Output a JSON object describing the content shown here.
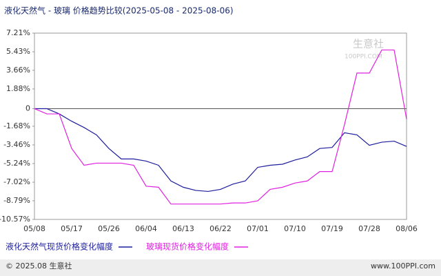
{
  "chart_data": {
    "type": "line",
    "title": "液化天然气 - 玻璃 价格趋势比较(2025-05-08 - 2025-08-06)",
    "watermark": [
      "生意社",
      "100PPI.COM"
    ],
    "footer": [
      "© 2025.08 生意社",
      "www.100PPI.com"
    ],
    "categories": [
      "05/08",
      null,
      null,
      "05/17",
      null,
      null,
      "05/26",
      null,
      null,
      "06/04",
      null,
      null,
      "06/13",
      null,
      null,
      "06/22",
      null,
      null,
      "07/01",
      null,
      null,
      "07/10",
      null,
      null,
      "07/19",
      null,
      null,
      "07/28",
      null,
      null,
      "08/06"
    ],
    "series": [
      {
        "name": "液化天然气现货价格变化幅度",
        "color": "#1c1c9c",
        "values": [
          0,
          0,
          -0.5,
          -1.2,
          -1.8,
          -2.5,
          -3.8,
          -4.8,
          -4.8,
          -5.0,
          -5.4,
          -6.9,
          -7.5,
          -7.8,
          -7.9,
          -7.7,
          -7.2,
          -6.9,
          -5.6,
          -5.4,
          -5.3,
          -4.9,
          -4.6,
          -3.8,
          -3.7,
          -2.3,
          -2.5,
          -3.5,
          -3.2,
          -3.1,
          -3.6
        ]
      },
      {
        "name": "玻璃现货价格变化幅度",
        "color": "#e020e0",
        "values": [
          0,
          -0.5,
          -0.5,
          -3.8,
          -5.4,
          -5.2,
          -5.2,
          -5.2,
          -5.4,
          -7.4,
          -7.5,
          -9.1,
          -9.1,
          -9.1,
          -9.1,
          -9.1,
          -9.0,
          -9.0,
          -8.8,
          -7.7,
          -7.5,
          -7.1,
          -6.9,
          -6.0,
          -6.0,
          -1.5,
          3.4,
          3.4,
          5.6,
          5.6,
          -1.0
        ]
      }
    ],
    "ylim": [
      -10.57,
      7.21
    ],
    "yticks": [
      {
        "value": 7.21,
        "label": "7.21%"
      },
      {
        "value": 5.43,
        "label": "5.43%"
      },
      {
        "value": 3.66,
        "label": "3.66%"
      },
      {
        "value": 1.88,
        "label": "1.88%"
      },
      0,
      {
        "value": -1.68,
        "label": "-1.68%"
      },
      {
        "value": -3.46,
        "label": "-3.46%"
      },
      {
        "value": -5.24,
        "label": "-5.24%"
      },
      {
        "value": -7.02,
        "label": "-7.02%"
      },
      {
        "value": -8.79,
        "label": "-8.79%"
      },
      {
        "value": -10.57,
        "label": "-10.57%"
      }
    ],
    "zero_line": true,
    "grid": false,
    "legend": "bottom"
  }
}
